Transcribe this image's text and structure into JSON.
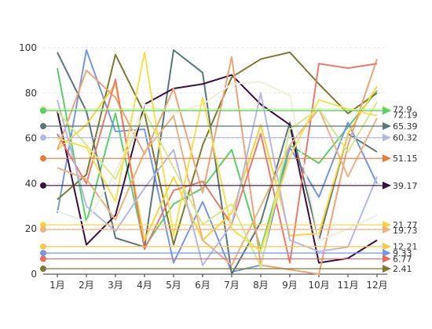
{
  "chart_data": {
    "type": "line",
    "title": "",
    "xlabel": "",
    "ylabel": "",
    "categories": [
      "1月",
      "2月",
      "3月",
      "4月",
      "5月",
      "6月",
      "7月",
      "8月",
      "9月",
      "10月",
      "11月",
      "12月"
    ],
    "ylim": [
      0,
      100
    ],
    "yticks": [
      0,
      20,
      40,
      60,
      80,
      100
    ],
    "grid": true,
    "legend": "none",
    "series": [
      {
        "color": "#5ad06a",
        "values": [
          91,
          23,
          71,
          12,
          31,
          38,
          55,
          11,
          57,
          49,
          65,
          81
        ]
      },
      {
        "color": "#7597e6",
        "values": [
          27,
          99,
          63,
          64,
          5,
          32,
          1,
          4,
          56,
          34,
          67,
          40
        ]
      },
      {
        "color": "#5a7676",
        "values": [
          98,
          72,
          16,
          12,
          99,
          89,
          0,
          23,
          67,
          15,
          62,
          54
        ]
      },
      {
        "color": "#3a1040",
        "values": [
          72,
          13,
          26,
          75,
          82,
          84,
          88,
          75,
          66,
          5,
          7,
          15
        ]
      },
      {
        "color": "#7c7a2e",
        "values": [
          33,
          44,
          97,
          71,
          13,
          57,
          87,
          95,
          98,
          84,
          71,
          80
        ]
      },
      {
        "color": "#fbd33a",
        "values": [
          55,
          66,
          84,
          15,
          43,
          15,
          27,
          66,
          17,
          18,
          62,
          83
        ]
      },
      {
        "color": "#f0a373",
        "values": [
          55,
          90,
          78,
          53,
          82,
          36,
          96,
          4,
          2,
          0,
          57,
          95
        ]
      },
      {
        "color": "#ec7a6a",
        "values": [
          62,
          40,
          86,
          11,
          37,
          41,
          22,
          62,
          5,
          93,
          91,
          93
        ]
      },
      {
        "color": "#eeb27e",
        "values": [
          47,
          42,
          24,
          54,
          70,
          15,
          4,
          30,
          57,
          73,
          43,
          69
        ]
      },
      {
        "color": "#b4b8e3",
        "values": [
          77,
          30,
          19,
          38,
          55,
          4,
          22,
          80,
          15,
          10,
          12,
          43
        ]
      },
      {
        "color": "#eeeedd",
        "values": [
          28,
          23,
          45,
          75,
          71,
          75,
          84,
          85,
          79,
          15,
          20,
          26
        ]
      },
      {
        "color": "#d5e98a",
        "values": [
          72,
          57,
          42,
          72,
          47,
          22,
          31,
          3,
          64,
          73,
          54,
          76
        ]
      },
      {
        "color": "#f7e14f",
        "values": [
          60,
          56,
          32,
          98,
          17,
          78,
          20,
          10,
          52,
          77,
          73,
          70
        ]
      }
    ],
    "reference_lines": [
      {
        "label": "72.19",
        "value": 72.19,
        "color": "#5ad06a"
      },
      {
        "label": "72.9",
        "value": 72.9,
        "color": "#d5e98a"
      },
      {
        "label": "65.39",
        "value": 65.39,
        "color": "#5a7676"
      },
      {
        "label": "60.32",
        "value": 60.32,
        "color": "#b4b8e3"
      },
      {
        "label": "51.15",
        "value": 51.15,
        "color": "#ec7a3a"
      },
      {
        "label": "39.17",
        "value": 39.17,
        "color": "#3a1040"
      },
      {
        "label": "21.77",
        "value": 21.77,
        "color": "#fbd33a"
      },
      {
        "label": "19.73",
        "value": 19.73,
        "color": "#eeb27e"
      },
      {
        "label": "12.21",
        "value": 12.21,
        "color": "#f7c948"
      },
      {
        "label": "9.33",
        "value": 9.33,
        "color": "#7597e6"
      },
      {
        "label": "6.77",
        "value": 6.77,
        "color": "#ec6a5a"
      },
      {
        "label": "2.41",
        "value": 2.41,
        "color": "#7c7a2e"
      }
    ]
  }
}
